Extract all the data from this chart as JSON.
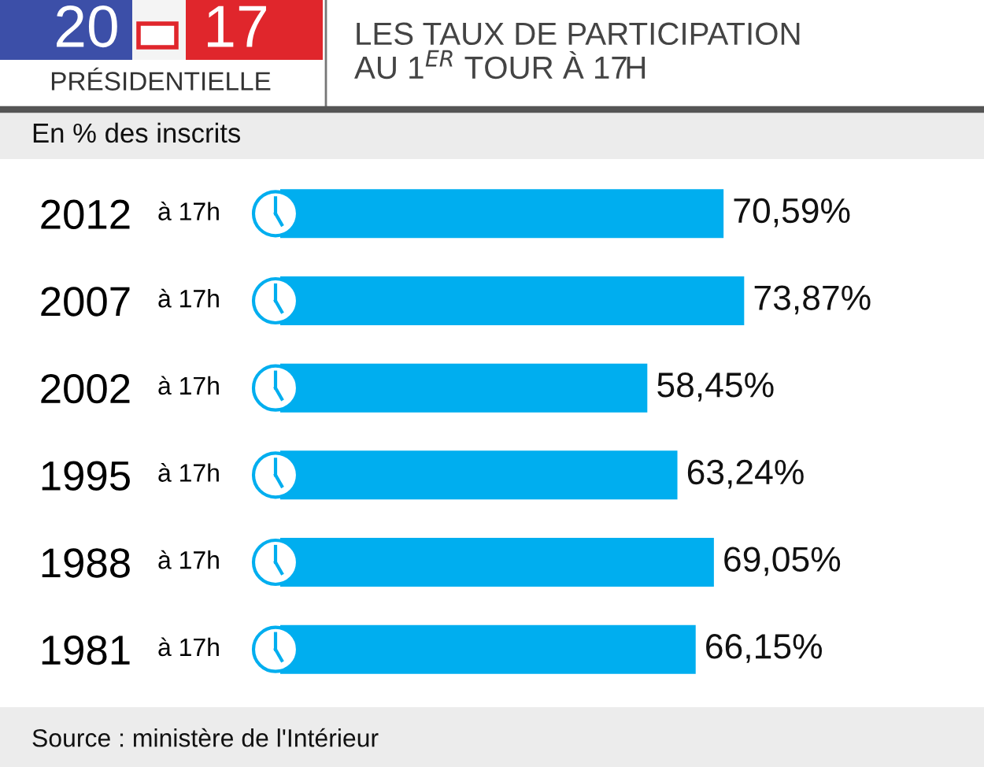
{
  "chart_data": {
    "type": "bar",
    "orientation": "horizontal",
    "title": "LES TAUX DE PARTICIPATION\nAU 1$^{ER}$ TOUR À 17H",
    "subtitle": "En % des inscrits",
    "categories": [
      "2012",
      "2007",
      "2002",
      "1995",
      "1988",
      "1981"
    ],
    "values": [
      70.59,
      73.87,
      58.45,
      63.24,
      69.05,
      66.15
    ],
    "value_labels": [
      "70,59%",
      "73,87%",
      "58,45%",
      "63,24%",
      "69,05%",
      "66,15%"
    ],
    "color": "#00aeef",
    "tick_labels": "y",
    "annotations": [
      "20",
      "17",
      "PRÉSIDENTIELLE",
      "à 17h",
      "à 17h",
      "à 17h",
      "à 17h",
      "à 17h",
      "à 17h",
      "Source : ministère de l'Intérieur"
    ]
  }
}
